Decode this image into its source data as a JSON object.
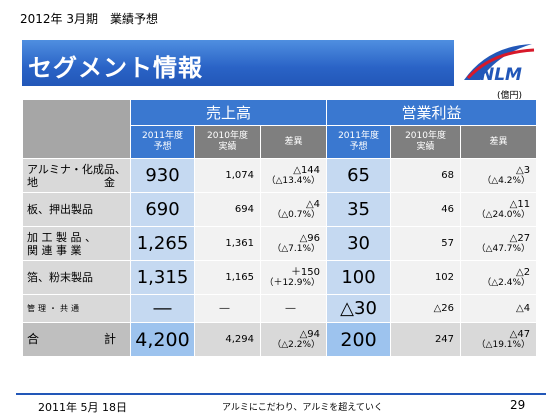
{
  "header": {
    "period_label": "2012年 3月期　業績予想",
    "title": "セグメント情報",
    "unit": "(億円)",
    "logo_text": "NLM"
  },
  "table": {
    "sales_header": "売上高",
    "profit_header": "営業利益",
    "sub_headers": {
      "forecast": "2011年度\n予想",
      "actual": "2010年度\n実績",
      "diff": "差異"
    },
    "rows": [
      {
        "label_line1": "アルミナ・化成品、",
        "label_line2": "地　　　　　　金",
        "sales_forecast": "930",
        "sales_actual": "1,074",
        "sales_diff": "△144",
        "sales_diff_pct": "（△13.4%）",
        "profit_forecast": "65",
        "profit_actual": "68",
        "profit_diff": "△3",
        "profit_diff_pct": "（△4.2%）"
      },
      {
        "label_line1": "板、押出製品",
        "label_line2": "",
        "sales_forecast": "690",
        "sales_actual": "694",
        "sales_diff": "△4",
        "sales_diff_pct": "（△0.7%）",
        "profit_forecast": "35",
        "profit_actual": "46",
        "profit_diff": "△11",
        "profit_diff_pct": "（△24.0%）"
      },
      {
        "label_line1": "加 工 製 品 、",
        "label_line2": "関 連 事 業",
        "sales_forecast": "1,265",
        "sales_actual": "1,361",
        "sales_diff": "△96",
        "sales_diff_pct": "（△7.1%）",
        "profit_forecast": "30",
        "profit_actual": "57",
        "profit_diff": "△27",
        "profit_diff_pct": "（△47.7%）"
      },
      {
        "label_line1": "箔、粉末製品",
        "label_line2": "",
        "sales_forecast": "1,315",
        "sales_actual": "1,165",
        "sales_diff": "＋150",
        "sales_diff_pct": "（＋12.9%）",
        "profit_forecast": "100",
        "profit_actual": "102",
        "profit_diff": "△2",
        "profit_diff_pct": "（△2.4%）"
      }
    ],
    "common_row": {
      "label": "管理・共通",
      "sales_forecast": "―",
      "sales_actual": "―",
      "sales_diff": "―",
      "profit_forecast": "△30",
      "profit_actual": "△26",
      "profit_diff": "△4"
    },
    "total_row": {
      "label_left": "合",
      "label_right": "計",
      "sales_forecast": "4,200",
      "sales_actual": "4,294",
      "sales_diff": "△94",
      "sales_diff_pct": "（△2.2%）",
      "profit_forecast": "200",
      "profit_actual": "247",
      "profit_diff": "△47",
      "profit_diff_pct": "（△19.1%）"
    }
  },
  "footer": {
    "date": "2011年 5月 18日",
    "slogan": "アルミにこだわり、アルミを超えていく",
    "page": "29"
  },
  "colors": {
    "title_blue": "#2a63c6",
    "header_blue": "#3a78d0",
    "highlight_blue": "#c5d9f1",
    "logo_red": "#d7192a"
  }
}
